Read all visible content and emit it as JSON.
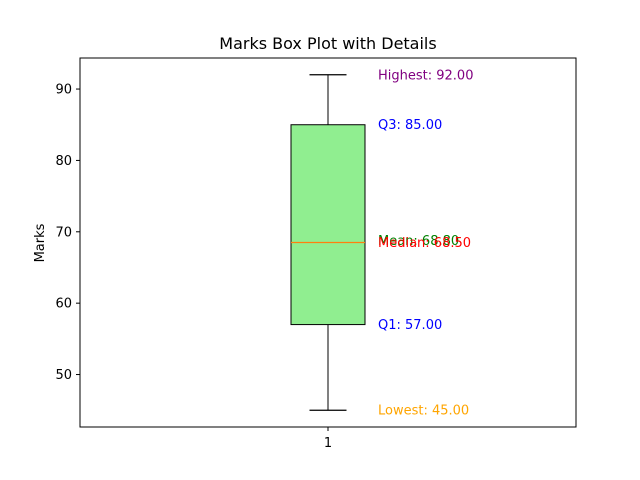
{
  "chart_data": {
    "type": "box",
    "title": "Marks Box Plot with Details",
    "xlabel": "",
    "ylabel": "Marks",
    "categories": [
      "1"
    ],
    "ylim": [
      42.65,
      94.35
    ],
    "yticks": [
      50,
      60,
      70,
      80,
      90
    ],
    "grid": false,
    "box": {
      "min": 45.0,
      "q1": 57.0,
      "median": 68.5,
      "mean": 68.8,
      "q3": 85.0,
      "max": 92.0
    },
    "annotations": [
      {
        "key": "max",
        "label": "Highest: 92.00",
        "value": 92.0
      },
      {
        "key": "q3",
        "label": "Q3: 85.00",
        "value": 85.0
      },
      {
        "key": "mean",
        "label": "Mean: 68.80",
        "value": 68.8
      },
      {
        "key": "median",
        "label": "Median: 68.50",
        "value": 68.5
      },
      {
        "key": "q1",
        "label": "Q1: 57.00",
        "value": 57.0
      },
      {
        "key": "min",
        "label": "Lowest: 45.00",
        "value": 45.0
      }
    ]
  },
  "colors": {
    "box_fill": "#90ee90",
    "median_line": "#ff7f0e",
    "max": "#800080",
    "q3": "#0000ff",
    "mean": "#008000",
    "median": "#ff0000",
    "q1": "#0000ff",
    "min": "#ffa500"
  }
}
